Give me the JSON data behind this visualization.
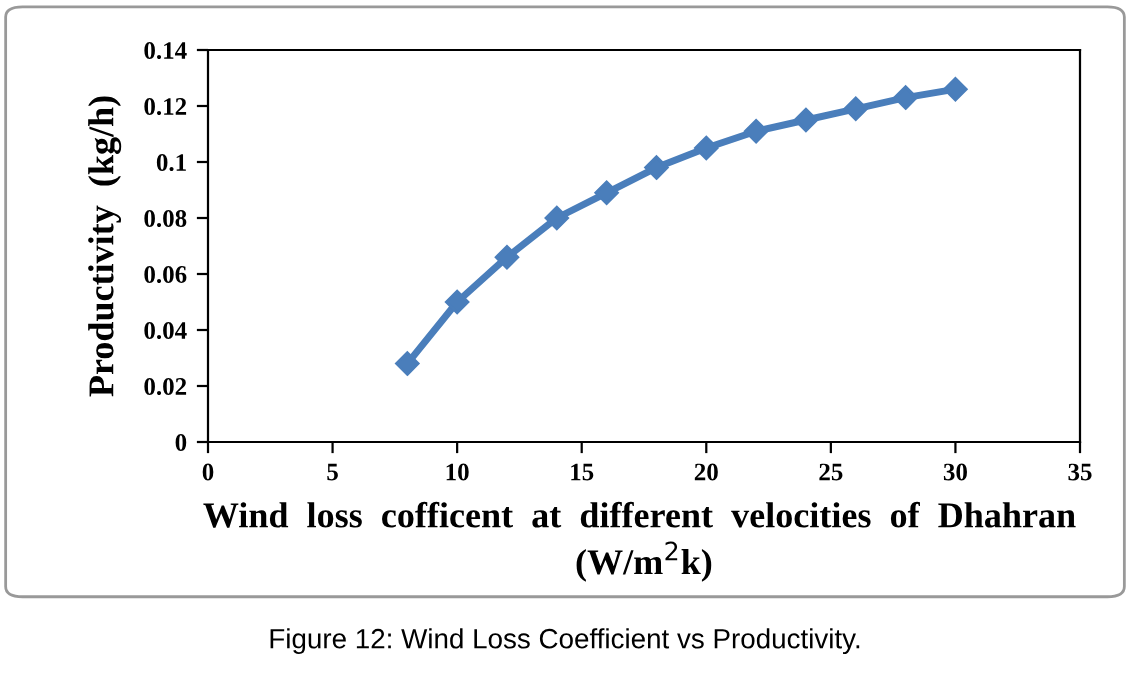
{
  "chart_data": {
    "type": "line",
    "xlabel": "Wind  loss  cofficent  at  different  velocities  of  Dhahran  (W/m$^{2}$k)",
    "ylabel": "Productivity  (kg/h)",
    "annotations": [
      "Figure 12: Wind Loss Coefficient vs Productivity."
    ],
    "x": [
      8,
      10,
      12,
      14,
      16,
      18,
      20,
      22,
      24,
      26,
      28,
      30
    ],
    "series": [
      {
        "color": "#4a7ebb",
        "values": [
          0.028,
          0.05,
          0.066,
          0.08,
          0.089,
          0.098,
          0.105,
          0.111,
          0.115,
          0.119,
          0.123,
          0.126
        ]
      }
    ],
    "xlim": [
      0,
      35
    ],
    "xticks": [
      0,
      5,
      10,
      15,
      20,
      25,
      30,
      35
    ],
    "ylim": [
      0,
      0.14
    ],
    "yticks": [
      0,
      0.02,
      0.04,
      0.06,
      0.08,
      0.1,
      0.12,
      0.14
    ],
    "grid": false,
    "legend": false,
    "marker": "diamond",
    "line_style": "solid"
  }
}
